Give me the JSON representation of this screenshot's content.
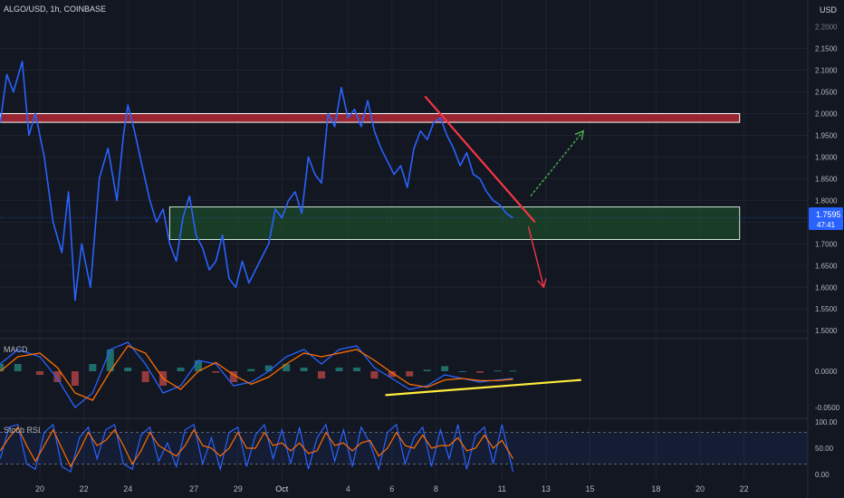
{
  "header": {
    "symbol": "ALGO/USD, 1h, COINBASE",
    "currency": "USD"
  },
  "price_badge": {
    "price": "1.7595",
    "countdown": "47:41"
  },
  "colors": {
    "background": "#131722",
    "price_line": "#2962ff",
    "resistance_zone": "#b22833",
    "support_zone": "#1e5b2a",
    "trendline": "#f23645",
    "up_arrow": "#4caf50",
    "down_arrow": "#f23645",
    "macd_line": "#2962ff",
    "signal_line": "#ff6d00",
    "divergence_line": "#ffeb3b",
    "stoch_k": "#2962ff",
    "stoch_d": "#ff6d00"
  },
  "chart_data": [
    {
      "type": "line",
      "panel": "price",
      "y_ticks": [
        "2.1500",
        "2.1000",
        "2.0500",
        "2.0000",
        "1.9500",
        "1.9000",
        "1.8500",
        "1.8000",
        "1.7500",
        "1.7000",
        "1.6500",
        "1.6000",
        "1.5500",
        "1.5000"
      ],
      "top_tick": "2.2000",
      "ylim": [
        1.49,
        2.22
      ],
      "x_ticks": [
        "20",
        "22",
        "24",
        "27",
        "29",
        "Oct",
        "4",
        "6",
        "8",
        "11",
        "13",
        "15",
        "18",
        "20",
        "22"
      ],
      "x_tick_day": [
        20,
        22,
        24,
        27,
        29,
        31,
        34,
        36,
        38,
        41,
        43,
        45,
        48,
        50,
        52
      ],
      "series": [
        {
          "day": [
            18.2,
            18.5,
            18.8,
            19.2,
            19.5,
            19.8,
            20.2,
            20.6,
            21.0,
            21.3,
            21.6,
            21.9,
            22.3,
            22.7,
            23.1,
            23.5,
            23.8,
            24.0,
            24.3,
            24.6,
            25.0,
            25.3,
            25.6,
            25.9,
            26.2,
            26.5,
            26.8,
            27.1,
            27.4,
            27.7,
            28.0,
            28.3,
            28.6,
            28.9,
            29.2,
            29.5,
            29.8,
            30.1,
            30.4,
            30.7,
            31.0,
            31.3,
            31.6,
            31.9,
            32.2,
            32.5,
            32.8,
            33.1,
            33.4,
            33.7,
            34.0,
            34.3,
            34.6,
            34.9,
            35.2,
            35.5,
            35.8,
            36.1,
            36.4,
            36.7,
            37.0,
            37.3,
            37.6,
            37.9,
            38.2,
            38.5,
            38.8,
            39.1,
            39.4,
            39.7,
            40.0,
            40.3,
            40.6,
            40.9,
            41.2,
            41.5
          ],
          "price": [
            1.98,
            2.09,
            2.05,
            2.12,
            1.95,
            2.0,
            1.9,
            1.75,
            1.68,
            1.82,
            1.57,
            1.7,
            1.6,
            1.85,
            1.92,
            1.8,
            1.95,
            2.02,
            1.96,
            1.89,
            1.8,
            1.75,
            1.78,
            1.7,
            1.66,
            1.76,
            1.81,
            1.72,
            1.69,
            1.64,
            1.66,
            1.72,
            1.62,
            1.6,
            1.66,
            1.61,
            1.64,
            1.67,
            1.7,
            1.78,
            1.76,
            1.8,
            1.82,
            1.77,
            1.9,
            1.86,
            1.84,
            2.0,
            1.97,
            2.06,
            1.99,
            2.01,
            1.97,
            2.03,
            1.96,
            1.92,
            1.89,
            1.86,
            1.88,
            1.83,
            1.92,
            1.96,
            1.94,
            1.98,
            1.99,
            1.95,
            1.92,
            1.88,
            1.91,
            1.86,
            1.85,
            1.82,
            1.8,
            1.79,
            1.77,
            1.76
          ]
        }
      ],
      "zones": [
        {
          "from_day": 18.2,
          "to_day": 51.8,
          "low": 1.98,
          "high": 2.0
        },
        {
          "from_day": 25.9,
          "to_day": 51.8,
          "low": 1.71,
          "high": 1.785
        }
      ],
      "trendline": {
        "from": [
          37.5,
          2.04
        ],
        "to": [
          42.5,
          1.75
        ]
      },
      "arrows": [
        {
          "from": [
            42.3,
            1.81
          ],
          "to": [
            44.7,
            1.96
          ]
        },
        {
          "from": [
            42.2,
            1.74
          ],
          "to": [
            42.9,
            1.6
          ]
        }
      ]
    },
    {
      "type": "line",
      "panel": "macd",
      "label": "MACD",
      "y_ticks": [
        "0.0000",
        "-0.0500"
      ],
      "ylim": [
        -0.06,
        0.04
      ],
      "series": [
        {
          "day": [
            18.2,
            19.0,
            20.0,
            20.8,
            21.6,
            22.4,
            23.2,
            24.0,
            24.8,
            25.6,
            26.4,
            27.2,
            28.0,
            28.8,
            29.6,
            30.4,
            31.2,
            32.0,
            32.8,
            33.6,
            34.4,
            35.2,
            36.0,
            36.8,
            37.6,
            38.4,
            39.2,
            40.0,
            40.8,
            41.5
          ],
          "macd": [
            0.01,
            0.03,
            0.02,
            -0.01,
            -0.05,
            -0.03,
            0.03,
            0.04,
            0.01,
            -0.03,
            -0.02,
            0.015,
            0.01,
            -0.02,
            -0.015,
            0.0,
            0.02,
            0.03,
            0.01,
            0.03,
            0.035,
            0.005,
            -0.01,
            -0.025,
            -0.02,
            -0.005,
            -0.01,
            -0.015,
            -0.012,
            -0.01
          ],
          "signal": [
            0.0,
            0.02,
            0.025,
            0.005,
            -0.03,
            -0.04,
            0.0,
            0.035,
            0.025,
            -0.01,
            -0.025,
            0.0,
            0.012,
            -0.005,
            -0.018,
            -0.008,
            0.01,
            0.025,
            0.02,
            0.025,
            0.03,
            0.015,
            -0.002,
            -0.018,
            -0.022,
            -0.012,
            -0.01,
            -0.013,
            -0.013,
            -0.011
          ]
        }
      ],
      "divergence_line": {
        "from": [
          35.7,
          -0.033
        ],
        "to": [
          44.6,
          -0.012
        ]
      }
    },
    {
      "type": "line",
      "panel": "stoch_rsi",
      "label": "Stoch RSI",
      "y_ticks": [
        "100.00",
        "50.00",
        "0.00"
      ],
      "bands": [
        80,
        20
      ],
      "ylim": [
        0,
        100
      ],
      "series": [
        {
          "day": [
            18.2,
            18.6,
            19.0,
            19.4,
            19.8,
            20.2,
            20.6,
            21.0,
            21.4,
            21.8,
            22.2,
            22.6,
            23.0,
            23.4,
            23.8,
            24.2,
            24.6,
            25.0,
            25.4,
            25.8,
            26.2,
            26.6,
            27.0,
            27.4,
            27.8,
            28.2,
            28.6,
            29.0,
            29.4,
            29.8,
            30.2,
            30.6,
            31.0,
            31.4,
            31.8,
            32.2,
            32.6,
            33.0,
            33.4,
            33.8,
            34.2,
            34.6,
            35.0,
            35.4,
            35.8,
            36.2,
            36.6,
            37.0,
            37.4,
            37.8,
            38.2,
            38.6,
            39.0,
            39.4,
            39.8,
            40.2,
            40.6,
            41.0,
            41.5
          ],
          "k": [
            30,
            90,
            95,
            20,
            10,
            80,
            95,
            15,
            5,
            70,
            90,
            30,
            85,
            95,
            20,
            10,
            75,
            90,
            25,
            60,
            15,
            85,
            95,
            20,
            70,
            10,
            80,
            90,
            15,
            75,
            95,
            30,
            85,
            20,
            90,
            10,
            70,
            95,
            25,
            85,
            15,
            90,
            60,
            10,
            80,
            95,
            20,
            70,
            90,
            15,
            85,
            30,
            95,
            10,
            75,
            90,
            20,
            95,
            5
          ],
          "d": [
            45,
            70,
            90,
            55,
            25,
            55,
            85,
            50,
            15,
            45,
            80,
            55,
            65,
            85,
            55,
            20,
            45,
            80,
            55,
            45,
            35,
            55,
            85,
            55,
            50,
            35,
            50,
            80,
            50,
            50,
            80,
            55,
            60,
            45,
            60,
            40,
            45,
            80,
            55,
            60,
            45,
            60,
            65,
            35,
            50,
            80,
            55,
            50,
            75,
            50,
            55,
            55,
            70,
            45,
            50,
            75,
            50,
            65,
            30
          ]
        }
      ]
    }
  ]
}
